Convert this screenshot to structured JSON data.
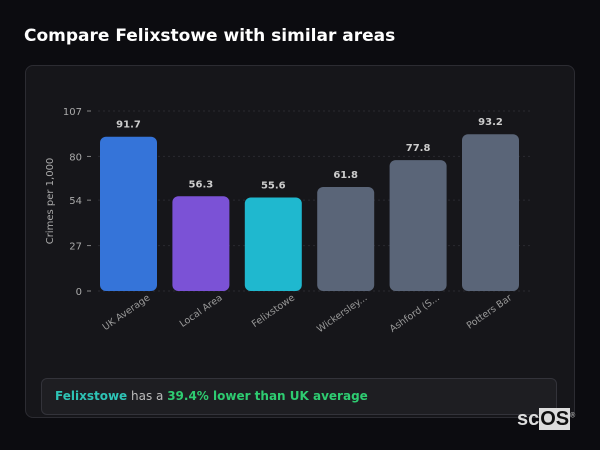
{
  "title": "Compare Felixstowe with similar areas",
  "chart_data": {
    "type": "bar",
    "categories": [
      "UK Average",
      "Local Area",
      "Felixstowe",
      "Wickersley...",
      "Ashford (S...",
      "Potters Bar"
    ],
    "values": [
      91.7,
      56.3,
      55.6,
      61.8,
      77.8,
      93.2
    ],
    "colors": [
      "#3574d9",
      "#7b52d6",
      "#1fb8cf",
      "#5a6578",
      "#5a6578",
      "#5a6578"
    ],
    "ylabel": "Crimes per 1,000",
    "ylim": [
      0,
      107
    ],
    "yticks": [
      0,
      27,
      54,
      80,
      107
    ],
    "grid": true
  },
  "footer": {
    "place": "Felixstowe",
    "middle": " has a ",
    "highlight": "39.4% lower than UK average"
  },
  "logo": {
    "text_a": "sc",
    "text_b": "OS"
  }
}
